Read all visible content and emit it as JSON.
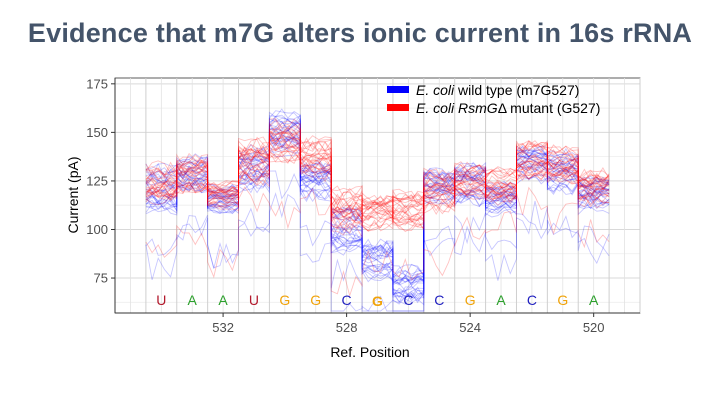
{
  "slide": {
    "title": "Evidence that m7G alters ionic current in 16s rRNA"
  },
  "chart_data": {
    "type": "line",
    "title": "Evidence that m7G alters ionic current in 16s rRNA",
    "xlabel": "Ref. Position",
    "ylabel": "Current (pA)",
    "x_reversed": true,
    "xlim": [
      518.5,
      535.5
    ],
    "ylim": [
      57,
      178
    ],
    "x_ticks": [
      532,
      528,
      524,
      520
    ],
    "y_ticks": [
      75,
      100,
      125,
      150,
      175
    ],
    "grid": true,
    "legend_position": "top-right",
    "bases": [
      {
        "letter": "U",
        "position": 534,
        "color": "#b2182b",
        "highlight": false
      },
      {
        "letter": "A",
        "position": 533,
        "color": "#2ca02c",
        "highlight": false
      },
      {
        "letter": "A",
        "position": 532,
        "color": "#2ca02c",
        "highlight": false
      },
      {
        "letter": "U",
        "position": 531,
        "color": "#b2182b",
        "highlight": false
      },
      {
        "letter": "G",
        "position": 530,
        "color": "#f0a30a",
        "highlight": false
      },
      {
        "letter": "G",
        "position": 529,
        "color": "#f0a30a",
        "highlight": false
      },
      {
        "letter": "C",
        "position": 528,
        "color": "#1f1fbf",
        "highlight": false
      },
      {
        "letter": "G",
        "position": 527,
        "color": "#f0a30a",
        "highlight": true
      },
      {
        "letter": "C",
        "position": 526,
        "color": "#1f1fbf",
        "highlight": false
      },
      {
        "letter": "C",
        "position": 525,
        "color": "#1f1fbf",
        "highlight": false
      },
      {
        "letter": "G",
        "position": 524,
        "color": "#f0a30a",
        "highlight": false
      },
      {
        "letter": "A",
        "position": 523,
        "color": "#2ca02c",
        "highlight": false
      },
      {
        "letter": "C",
        "position": 522,
        "color": "#1f1fbf",
        "highlight": false
      },
      {
        "letter": "G",
        "position": 521,
        "color": "#f0a30a",
        "highlight": false
      },
      {
        "letter": "A",
        "position": 520,
        "color": "#2ca02c",
        "highlight": false
      }
    ],
    "series": [
      {
        "name_italic": "E. coli",
        "name_rest": " wild type (m7G527)",
        "color": "#0000ff",
        "positions": [
          534,
          533,
          532,
          531,
          530,
          529,
          528,
          527,
          526,
          525,
          524,
          523,
          522,
          521,
          520
        ],
        "mean_current": [
          121,
          128,
          116,
          130,
          150,
          126,
          99,
          85,
          72,
          122,
          123,
          116,
          133,
          130,
          118
        ],
        "spread": [
          10,
          8,
          6,
          10,
          9,
          9,
          10,
          9,
          8,
          8,
          9,
          7,
          8,
          9,
          8
        ]
      },
      {
        "name_italic": "E. coli RsmG",
        "name_rest": "Δ mutant (G527)",
        "color": "#ff0000",
        "positions": [
          534,
          533,
          532,
          531,
          530,
          529,
          528,
          527,
          526,
          525,
          524,
          523,
          522,
          521,
          520
        ],
        "mean_current": [
          123,
          129,
          118,
          135,
          146,
          136,
          110,
          108,
          110,
          120,
          126,
          122,
          136,
          133,
          122
        ],
        "spread": [
          9,
          8,
          6,
          10,
          9,
          9,
          10,
          8,
          8,
          9,
          8,
          8,
          8,
          8,
          8
        ]
      }
    ]
  }
}
